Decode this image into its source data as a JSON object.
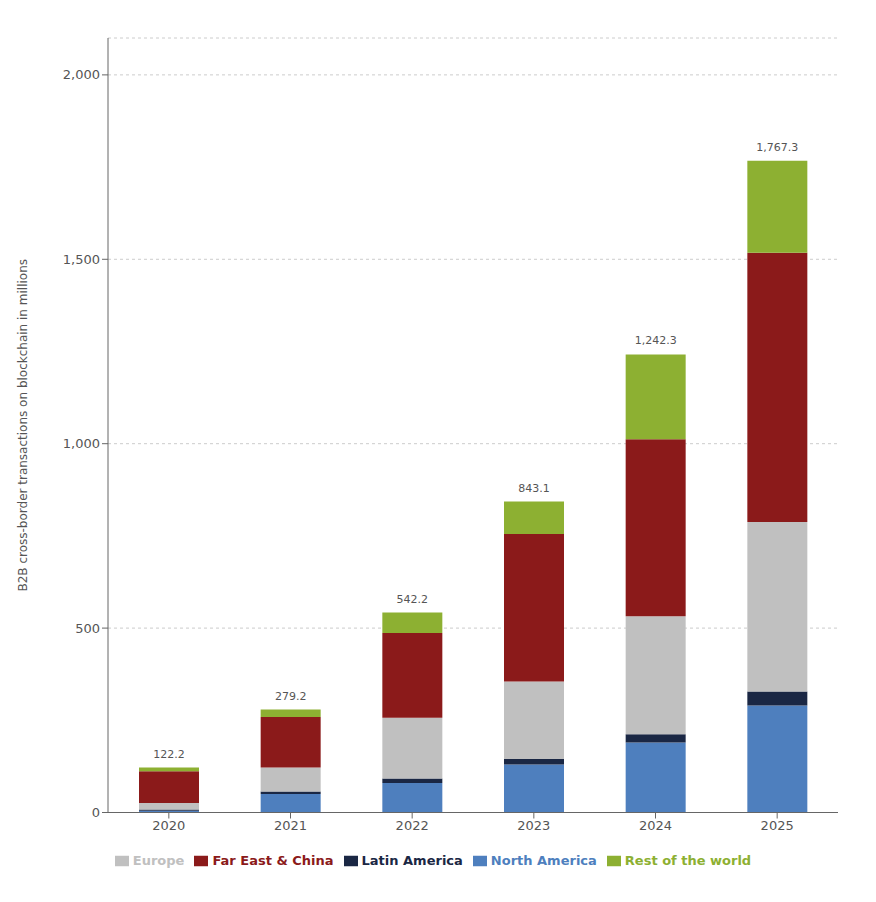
{
  "chart_data": {
    "type": "bar",
    "stacked": true,
    "categories": [
      "2020",
      "2021",
      "2022",
      "2023",
      "2024",
      "2025"
    ],
    "series": [
      {
        "name": "North America",
        "color": "#4e7fbe",
        "values": [
          5,
          50,
          80,
          130,
          190,
          290
        ]
      },
      {
        "name": "Latin America",
        "color": "#1a2744",
        "values": [
          3,
          7,
          12,
          15,
          22,
          38
        ]
      },
      {
        "name": "Europe",
        "color": "#c0c0c0",
        "values": [
          18,
          65,
          165,
          210,
          320,
          460
        ]
      },
      {
        "name": "Far East & China",
        "color": "#8b1a1a",
        "values": [
          86,
          137,
          230,
          400,
          480,
          730
        ]
      },
      {
        "name": "Rest of the world",
        "color": "#8db032",
        "values": [
          10,
          20,
          55,
          88,
          230,
          249
        ]
      }
    ],
    "totals": [
      122.2,
      279.2,
      542.2,
      843.1,
      1242.3,
      1767.3
    ],
    "total_labels": [
      "122.2",
      "279.2",
      "542.2",
      "843.1",
      "1,242.3",
      "1,767.3"
    ],
    "ylabel": "B2B cross-border transactions on blockchain in millions",
    "ylim": [
      0,
      2100
    ],
    "yticks": [
      0,
      500,
      {
        "value": 1000,
        "label": "1,000"
      },
      {
        "value": 1500,
        "label": "1,500"
      },
      {
        "value": 2000,
        "label": "2,000"
      }
    ],
    "grid": true,
    "legend": "bottom"
  }
}
